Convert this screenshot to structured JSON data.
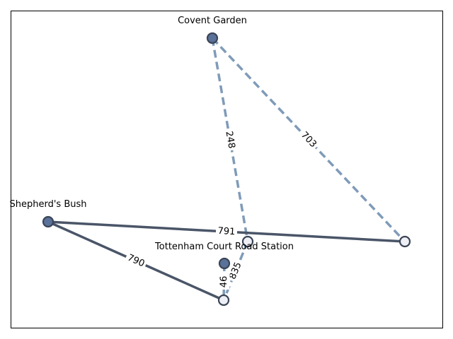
{
  "nodes": [
    {
      "id": "covent",
      "label": "Covent Garden",
      "style": "filled"
    },
    {
      "id": "shepherd",
      "label": "Shepherd's Bush",
      "style": "filled"
    },
    {
      "id": "tottenham",
      "label": "Tottenham Court Road Station",
      "style": "filled"
    },
    {
      "id": "n_mid",
      "label": "",
      "style": "hollow"
    },
    {
      "id": "n_right",
      "label": "",
      "style": "hollow"
    },
    {
      "id": "n_bottom",
      "label": "",
      "style": "hollow"
    }
  ],
  "edges": [
    {
      "from": "covent",
      "to": "n_mid",
      "label": "248",
      "style": "dashed"
    },
    {
      "from": "covent",
      "to": "n_right",
      "label": "703",
      "style": "dashed"
    },
    {
      "from": "shepherd",
      "to": "n_right",
      "label": "791",
      "style": "solid"
    },
    {
      "from": "shepherd",
      "to": "n_bottom",
      "label": "790",
      "style": "solid"
    },
    {
      "from": "n_mid",
      "to": "n_bottom",
      "label": "835",
      "style": "dashed"
    },
    {
      "from": "tottenham",
      "to": "n_bottom",
      "label": "46",
      "style": "dashed"
    }
  ],
  "colors": {
    "node_fill": "#5a7299",
    "node_hollow_fill": "#eef0f6",
    "node_stroke": "#3b4556",
    "edge_solid": "#4a5568",
    "edge_dashed": "#7f9bb8"
  }
}
